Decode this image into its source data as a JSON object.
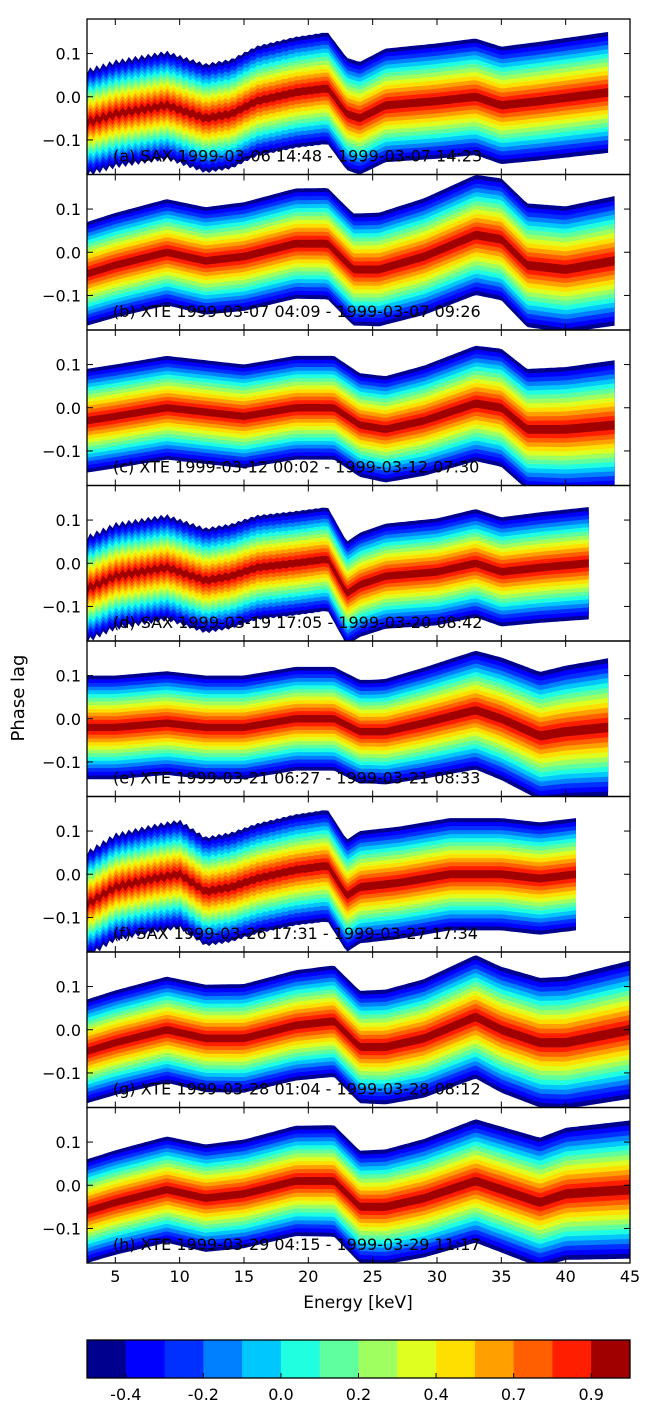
{
  "chart_data": {
    "type": "heatmap",
    "kind": "filled-contour",
    "xlabel": "Energy [keV]",
    "ylabel": "Phase lag",
    "xlim": [
      2.8,
      45
    ],
    "ylim": [
      -0.18,
      0.18
    ],
    "xticks": [
      5,
      10,
      15,
      20,
      25,
      30,
      35,
      40,
      45
    ],
    "yticks": [
      -0.1,
      0.0,
      0.1
    ],
    "ytick_labels": [
      "−0.1",
      "0.0",
      "0.1"
    ],
    "colorbar": {
      "levels": 14,
      "colors": [
        "#00008f",
        "#0000ff",
        "#0030ff",
        "#0080ff",
        "#00c8ff",
        "#20ffdf",
        "#5fffa0",
        "#a0ff60",
        "#dfff20",
        "#ffdf00",
        "#ff9f00",
        "#ff5f00",
        "#ff1f00",
        "#a00000"
      ],
      "tick_labels": [
        "-0.4",
        "-0.2",
        "0.0",
        "0.2",
        "0.4",
        "0.7",
        "0.9"
      ]
    },
    "panels": [
      {
        "label": "(a) SAX 1999-03-06 14:48 - 1999-03-07 14:23",
        "instrument": "SAX",
        "x_end": 43.3,
        "ridge": [
          [
            2.8,
            -0.06
          ],
          [
            5,
            -0.04
          ],
          [
            9,
            -0.02
          ],
          [
            12,
            -0.05
          ],
          [
            14,
            -0.04
          ],
          [
            16,
            -0.01
          ],
          [
            19,
            0.01
          ],
          [
            21.5,
            0.02
          ],
          [
            23,
            -0.04
          ],
          [
            24,
            -0.05
          ],
          [
            26,
            -0.02
          ],
          [
            30,
            -0.01
          ],
          [
            33,
            0.0
          ],
          [
            35,
            -0.02
          ],
          [
            38,
            -0.01
          ],
          [
            43.3,
            0.01
          ]
        ],
        "half_width": [
          [
            2.8,
            0.12
          ],
          [
            23,
            0.13
          ],
          [
            43.3,
            0.14
          ]
        ]
      },
      {
        "label": "(b) XTE 1999-03-07 04:09 - 1999-03-07 09:26",
        "instrument": "XTE",
        "x_end": 43.8,
        "ridge": [
          [
            2.8,
            -0.05
          ],
          [
            5,
            -0.03
          ],
          [
            9,
            0.0
          ],
          [
            12,
            -0.02
          ],
          [
            15,
            -0.01
          ],
          [
            19,
            0.02
          ],
          [
            21.5,
            0.02
          ],
          [
            23.5,
            -0.04
          ],
          [
            25.5,
            -0.04
          ],
          [
            29,
            -0.01
          ],
          [
            33,
            0.04
          ],
          [
            35,
            0.03
          ],
          [
            37,
            -0.03
          ],
          [
            40,
            -0.04
          ],
          [
            43.8,
            -0.02
          ]
        ],
        "half_width": [
          [
            2.8,
            0.12
          ],
          [
            24,
            0.13
          ],
          [
            43.8,
            0.15
          ]
        ]
      },
      {
        "label": "(c) XTE 1999-03-12 00:02 - 1999-03-12 07:30",
        "instrument": "XTE",
        "x_end": 43.8,
        "ridge": [
          [
            2.8,
            -0.03
          ],
          [
            5,
            -0.02
          ],
          [
            9,
            0.0
          ],
          [
            12,
            -0.01
          ],
          [
            15,
            -0.02
          ],
          [
            19,
            0.0
          ],
          [
            22,
            0.0
          ],
          [
            24,
            -0.04
          ],
          [
            26,
            -0.05
          ],
          [
            29,
            -0.03
          ],
          [
            33,
            0.01
          ],
          [
            35,
            0.0
          ],
          [
            37,
            -0.05
          ],
          [
            40,
            -0.05
          ],
          [
            43.8,
            -0.04
          ]
        ],
        "half_width": [
          [
            2.8,
            0.12
          ],
          [
            24,
            0.12
          ],
          [
            43.8,
            0.15
          ]
        ]
      },
      {
        "label": "(d) SAX 1999-03-19 17:05 - 1999-03-20 08:42",
        "instrument": "SAX",
        "x_end": 41.8,
        "ridge": [
          [
            2.8,
            -0.06
          ],
          [
            5,
            -0.03
          ],
          [
            9,
            -0.01
          ],
          [
            12,
            -0.04
          ],
          [
            14,
            -0.03
          ],
          [
            16,
            -0.01
          ],
          [
            19,
            0.0
          ],
          [
            21.5,
            0.01
          ],
          [
            23,
            -0.07
          ],
          [
            24,
            -0.05
          ],
          [
            26,
            -0.03
          ],
          [
            30,
            -0.02
          ],
          [
            33,
            0.0
          ],
          [
            35,
            -0.02
          ],
          [
            38,
            -0.01
          ],
          [
            41.8,
            0.0
          ]
        ],
        "half_width": [
          [
            2.8,
            0.12
          ],
          [
            23,
            0.12
          ],
          [
            41.8,
            0.13
          ]
        ]
      },
      {
        "label": "(e) XTE 1999-03-21 06:27 - 1999-03-21 08:33",
        "instrument": "XTE",
        "x_end": 43.3,
        "ridge": [
          [
            2.8,
            -0.02
          ],
          [
            5,
            -0.02
          ],
          [
            9,
            -0.01
          ],
          [
            12,
            -0.02
          ],
          [
            15,
            -0.02
          ],
          [
            19,
            0.0
          ],
          [
            22,
            0.0
          ],
          [
            24,
            -0.03
          ],
          [
            26,
            -0.03
          ],
          [
            29,
            -0.01
          ],
          [
            33,
            0.02
          ],
          [
            35,
            0.0
          ],
          [
            38,
            -0.04
          ],
          [
            40,
            -0.03
          ],
          [
            43.3,
            -0.02
          ]
        ],
        "half_width": [
          [
            2.8,
            0.12
          ],
          [
            25,
            0.12
          ],
          [
            43.3,
            0.16
          ]
        ]
      },
      {
        "label": "(f) SAX 1999-03-26 17:31 - 1999-03-27 17:34",
        "instrument": "SAX",
        "x_end": 40.8,
        "ridge": [
          [
            2.8,
            -0.07
          ],
          [
            5,
            -0.03
          ],
          [
            8,
            -0.01
          ],
          [
            10,
            0.0
          ],
          [
            12,
            -0.04
          ],
          [
            14,
            -0.03
          ],
          [
            16,
            -0.01
          ],
          [
            19,
            0.01
          ],
          [
            21.5,
            0.02
          ],
          [
            23,
            -0.05
          ],
          [
            24,
            -0.03
          ],
          [
            27,
            -0.02
          ],
          [
            31,
            0.0
          ],
          [
            35,
            0.0
          ],
          [
            38,
            -0.01
          ],
          [
            40.8,
            0.0
          ]
        ],
        "half_width": [
          [
            2.8,
            0.12
          ],
          [
            23,
            0.13
          ],
          [
            40.8,
            0.13
          ]
        ]
      },
      {
        "label": "(g) XTE 1999-03-28 01:04 - 1999-03-28 08:12",
        "instrument": "XTE",
        "x_end": 45,
        "ridge": [
          [
            2.8,
            -0.05
          ],
          [
            5,
            -0.03
          ],
          [
            9,
            0.0
          ],
          [
            12,
            -0.02
          ],
          [
            15,
            -0.02
          ],
          [
            19,
            0.01
          ],
          [
            22,
            0.02
          ],
          [
            24,
            -0.04
          ],
          [
            26,
            -0.04
          ],
          [
            29,
            -0.02
          ],
          [
            33,
            0.03
          ],
          [
            35,
            0.0
          ],
          [
            38,
            -0.03
          ],
          [
            40,
            -0.03
          ],
          [
            45,
            0.0
          ]
        ],
        "half_width": [
          [
            2.8,
            0.12
          ],
          [
            24,
            0.13
          ],
          [
            45,
            0.16
          ]
        ]
      },
      {
        "label": "(h) XTE 1999-03-29 04:15 - 1999-03-29 11:17",
        "instrument": "XTE",
        "x_end": 45,
        "ridge": [
          [
            2.8,
            -0.06
          ],
          [
            5,
            -0.04
          ],
          [
            9,
            -0.01
          ],
          [
            12,
            -0.03
          ],
          [
            15,
            -0.02
          ],
          [
            19,
            0.01
          ],
          [
            22,
            0.01
          ],
          [
            24,
            -0.05
          ],
          [
            26,
            -0.05
          ],
          [
            29,
            -0.03
          ],
          [
            33,
            0.01
          ],
          [
            35,
            -0.01
          ],
          [
            38,
            -0.04
          ],
          [
            40,
            -0.02
          ],
          [
            45,
            -0.01
          ]
        ],
        "half_width": [
          [
            2.8,
            0.12
          ],
          [
            24,
            0.13
          ],
          [
            45,
            0.16
          ]
        ]
      }
    ]
  }
}
